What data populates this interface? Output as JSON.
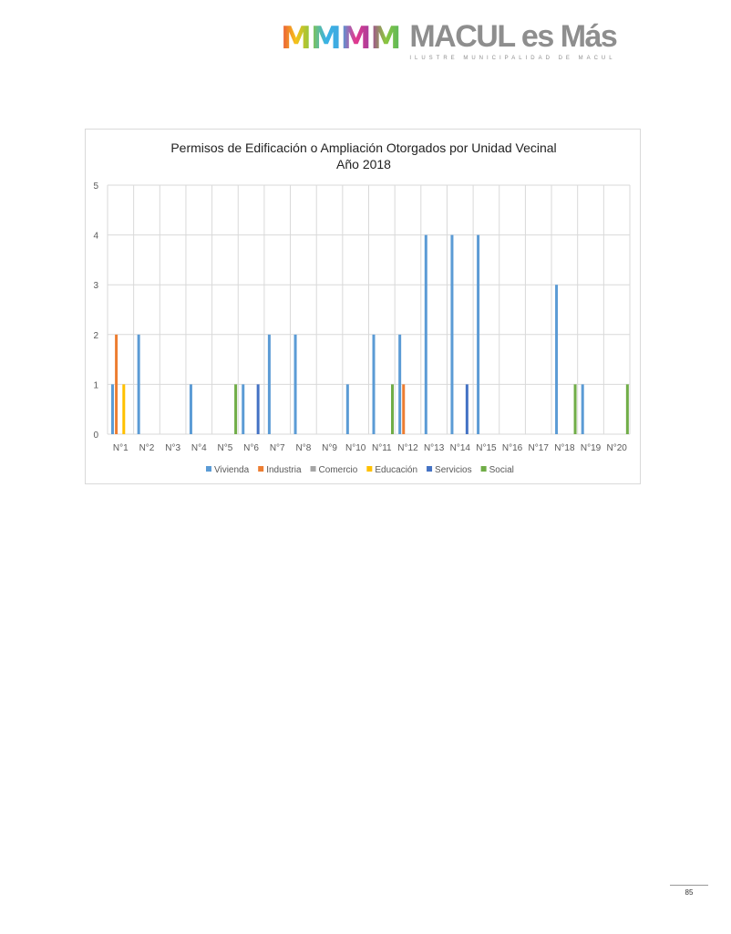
{
  "header": {
    "logo_mark": "MMMM",
    "logo_text": "MACUL es Más",
    "logo_subtitle": "ILUSTRE MUNICIPALIDAD DE MACUL"
  },
  "chart_data": {
    "type": "bar",
    "title": "Permisos de Edificación o Ampliación Otorgados por Unidad Vecinal",
    "subtitle": "Año 2018",
    "xlabel": "",
    "ylabel": "",
    "ylim": [
      0,
      5
    ],
    "yticks": [
      0,
      1,
      2,
      3,
      4,
      5
    ],
    "grid": true,
    "legend_position": "bottom",
    "categories": [
      "N°1",
      "N°2",
      "N°3",
      "N°4",
      "N°5",
      "N°6",
      "N°7",
      "N°8",
      "N°9",
      "N°10",
      "N°11",
      "N°12",
      "N°13",
      "N°14",
      "N°15",
      "N°16",
      "N°17",
      "N°18",
      "N°19",
      "N°20"
    ],
    "series": [
      {
        "name": "Vivienda",
        "color": "#5b9bd5",
        "values": [
          1,
          2,
          0,
          1,
          0,
          1,
          2,
          2,
          0,
          1,
          2,
          2,
          4,
          4,
          4,
          0,
          0,
          3,
          1,
          0
        ]
      },
      {
        "name": "Industria",
        "color": "#ed7d31",
        "values": [
          2,
          0,
          0,
          0,
          0,
          0,
          0,
          0,
          0,
          0,
          0,
          1,
          0,
          0,
          0,
          0,
          0,
          0,
          0,
          0
        ]
      },
      {
        "name": "Comercio",
        "color": "#a5a5a5",
        "values": [
          0,
          0,
          0,
          0,
          0,
          0,
          0,
          0,
          0,
          0,
          0,
          0,
          0,
          0,
          0,
          0,
          0,
          0,
          0,
          0
        ]
      },
      {
        "name": "Educación",
        "color": "#ffc000",
        "values": [
          1,
          0,
          0,
          0,
          0,
          0,
          0,
          0,
          0,
          0,
          0,
          0,
          0,
          0,
          0,
          0,
          0,
          0,
          0,
          0
        ]
      },
      {
        "name": "Servicios",
        "color": "#4472c4",
        "values": [
          0,
          0,
          0,
          0,
          0,
          1,
          0,
          0,
          0,
          0,
          0,
          0,
          0,
          1,
          0,
          0,
          0,
          0,
          0,
          0
        ]
      },
      {
        "name": "Social",
        "color": "#70ad47",
        "values": [
          0,
          0,
          0,
          0,
          1,
          0,
          0,
          0,
          0,
          0,
          1,
          0,
          0,
          0,
          0,
          0,
          0,
          1,
          0,
          1
        ]
      }
    ]
  },
  "footer": {
    "page_number": "85"
  }
}
